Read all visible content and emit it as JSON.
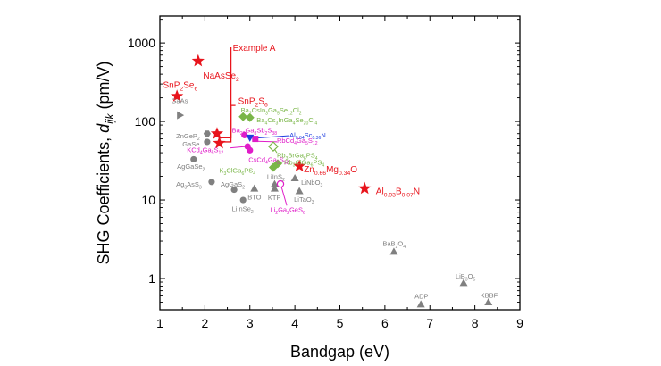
{
  "chart_data": {
    "type": "scatter",
    "xlabel": "Bandgap (eV)",
    "ylabel_main": "SHG Coefficients, ",
    "ylabel_var": "d",
    "ylabel_sub": "ijk",
    "ylabel_unit": " (pm/V)",
    "x_scale": "linear",
    "y_scale": "log",
    "xlim": [
      1,
      9
    ],
    "ylim": [
      0.4,
      2200
    ],
    "x_ticks": [
      "1",
      "2",
      "3",
      "4",
      "5",
      "6",
      "7",
      "8",
      "9"
    ],
    "y_ticks": [
      {
        "value": 1,
        "label": "1"
      },
      {
        "value": 10,
        "label": "10"
      },
      {
        "value": 100,
        "label": "100"
      },
      {
        "value": 1000,
        "label": "1000"
      }
    ],
    "grid": false,
    "colors": {
      "red": "#e8141c",
      "gray": "#808080",
      "green": "#7ab648",
      "magenta": "#e01cc8",
      "blue": "#1f3ee0"
    },
    "points": [
      {
        "x": 1.85,
        "y": 590,
        "marker": "star",
        "color": "red",
        "parts": [
          {
            "t": "NaAsSe"
          },
          {
            "t": "2",
            "sub": true
          }
        ],
        "lx": 1.96,
        "ly": 380
      },
      {
        "x": 1.38,
        "y": 210,
        "marker": "star",
        "color": "red",
        "parts": [
          {
            "t": "SnP"
          },
          {
            "t": "2",
            "sub": true
          },
          {
            "t": "Se"
          },
          {
            "t": "6",
            "sub": true
          }
        ],
        "lx": 1.07,
        "ly": 290
      },
      {
        "x": 2.27,
        "y": 70,
        "marker": "star",
        "color": "red",
        "parts": [],
        "lx": 0,
        "ly": 0
      },
      {
        "x": 2.32,
        "y": 53,
        "marker": "star",
        "color": "red",
        "parts": [],
        "lx": 0,
        "ly": 0
      },
      {
        "x": 4.1,
        "y": 27,
        "marker": "star",
        "color": "red",
        "parts": [
          {
            "t": "Zn"
          },
          {
            "t": "0.66",
            "sub": true
          },
          {
            "t": "Mg"
          },
          {
            "t": "0.34",
            "sub": true
          },
          {
            "t": "O"
          }
        ],
        "lx": 4.2,
        "ly": 24.5
      },
      {
        "x": 5.55,
        "y": 14,
        "marker": "star",
        "color": "red",
        "parts": [
          {
            "t": "Al"
          },
          {
            "t": "0.93",
            "sub": true
          },
          {
            "t": "B"
          },
          {
            "t": "0.07",
            "sub": true
          },
          {
            "t": "N"
          }
        ],
        "lx": 5.8,
        "ly": 12.8
      },
      {
        "x": 1.45,
        "y": 120,
        "marker": "triangle-right",
        "color": "gray",
        "parts": [
          {
            "t": "GaAs"
          }
        ],
        "lx": 1.25,
        "ly": 185
      },
      {
        "x": 2.05,
        "y": 70,
        "marker": "hexagon",
        "color": "gray",
        "parts": [
          {
            "t": "ZnGeP"
          },
          {
            "t": "2",
            "sub": true
          }
        ],
        "lx": 1.36,
        "ly": 66
      },
      {
        "x": 2.05,
        "y": 55,
        "marker": "circle",
        "color": "gray",
        "parts": [
          {
            "t": "GaSe"
          }
        ],
        "lx": 1.5,
        "ly": 52
      },
      {
        "x": 1.75,
        "y": 33,
        "marker": "circle",
        "color": "gray",
        "parts": [
          {
            "t": "AgGaSe"
          },
          {
            "t": "2",
            "sub": true
          }
        ],
        "lx": 1.38,
        "ly": 27
      },
      {
        "x": 2.15,
        "y": 17,
        "marker": "circle",
        "color": "gray",
        "parts": [
          {
            "t": "Ag"
          },
          {
            "t": "3",
            "sub": true
          },
          {
            "t": "AsS"
          },
          {
            "t": "3",
            "sub": true
          }
        ],
        "lx": 1.36,
        "ly": 16
      },
      {
        "x": 2.65,
        "y": 13.5,
        "marker": "circle",
        "color": "gray",
        "parts": [
          {
            "t": "AgGaS"
          },
          {
            "t": "2",
            "sub": true
          }
        ],
        "lx": 2.35,
        "ly": 16
      },
      {
        "x": 2.85,
        "y": 10,
        "marker": "circle",
        "color": "gray",
        "parts": [
          {
            "t": "LiInSe"
          },
          {
            "t": "2",
            "sub": true
          }
        ],
        "lx": 2.6,
        "ly": 7.8
      },
      {
        "x": 3.1,
        "y": 14,
        "marker": "triangle",
        "color": "gray",
        "parts": [
          {
            "t": "BTO"
          }
        ],
        "lx": 2.95,
        "ly": 11
      },
      {
        "x": 3.55,
        "y": 14,
        "marker": "triangle",
        "color": "gray",
        "parts": [
          {
            "t": "KTP"
          }
        ],
        "lx": 3.4,
        "ly": 10.8
      },
      {
        "x": 3.55,
        "y": 16,
        "marker": "triangle",
        "color": "gray",
        "parts": [
          {
            "t": "LiInS"
          },
          {
            "t": "2",
            "sub": true
          }
        ],
        "lx": 3.38,
        "ly": 20
      },
      {
        "x": 4.0,
        "y": 19,
        "marker": "triangle",
        "color": "gray",
        "parts": [
          {
            "t": "LiNbO"
          },
          {
            "t": "3",
            "sub": true
          }
        ],
        "lx": 4.14,
        "ly": 17
      },
      {
        "x": 4.1,
        "y": 13,
        "marker": "triangle",
        "color": "gray",
        "parts": [
          {
            "t": "LiTaO"
          },
          {
            "t": "3",
            "sub": true
          }
        ],
        "lx": 3.98,
        "ly": 10.3
      },
      {
        "x": 6.2,
        "y": 2.2,
        "marker": "triangle",
        "color": "gray",
        "parts": [
          {
            "t": "BaB"
          },
          {
            "t": "2",
            "sub": true
          },
          {
            "t": "O"
          },
          {
            "t": "4",
            "sub": true
          }
        ],
        "lx": 5.95,
        "ly": 2.8
      },
      {
        "x": 6.8,
        "y": 0.47,
        "marker": "triangle",
        "color": "gray",
        "parts": [
          {
            "t": "ADP"
          }
        ],
        "lx": 6.66,
        "ly": 0.6
      },
      {
        "x": 7.75,
        "y": 0.88,
        "marker": "triangle",
        "color": "gray",
        "parts": [
          {
            "t": "LiB"
          },
          {
            "t": "3",
            "sub": true
          },
          {
            "t": "O"
          },
          {
            "t": "5",
            "sub": true
          }
        ],
        "lx": 7.57,
        "ly": 1.08
      },
      {
        "x": 8.3,
        "y": 0.5,
        "marker": "triangle",
        "color": "gray",
        "parts": [
          {
            "t": "KBBF"
          }
        ],
        "lx": 8.12,
        "ly": 0.62
      },
      {
        "x": 2.85,
        "y": 115,
        "marker": "diamond",
        "color": "green",
        "parts": [
          {
            "t": "Ba"
          },
          {
            "t": "2",
            "sub": true
          },
          {
            "t": "CsIn"
          },
          {
            "t": "3",
            "sub": true
          },
          {
            "t": "Ga"
          },
          {
            "t": "5",
            "sub": true
          },
          {
            "t": "Se"
          },
          {
            "t": "12",
            "sub": true
          },
          {
            "t": "Cl"
          },
          {
            "t": "2",
            "sub": true
          }
        ],
        "lx": 2.8,
        "ly": 140
      },
      {
        "x": 3.0,
        "y": 112,
        "marker": "diamond",
        "color": "green",
        "parts": [
          {
            "t": "Ba"
          },
          {
            "t": "4",
            "sub": true
          },
          {
            "t": "Cs"
          },
          {
            "t": "3",
            "sub": true
          },
          {
            "t": "InGa"
          },
          {
            "t": "4",
            "sub": true
          },
          {
            "t": "Se"
          },
          {
            "t": "20",
            "sub": true
          },
          {
            "t": "Cl"
          },
          {
            "t": "4",
            "sub": true
          }
        ],
        "lx": 3.15,
        "ly": 105
      },
      {
        "x": 3.52,
        "y": 48,
        "marker": "diamond-open",
        "color": "green",
        "parts": [
          {
            "t": "Rb"
          },
          {
            "t": "3",
            "sub": true
          },
          {
            "t": "BrGa"
          },
          {
            "t": "6",
            "sub": true
          },
          {
            "t": "PS"
          },
          {
            "t": "4",
            "sub": true
          }
        ],
        "lx": 3.6,
        "ly": 37.5
      },
      {
        "x": 3.62,
        "y": 29,
        "marker": "diamond",
        "color": "green",
        "parts": [
          {
            "t": "Rb"
          },
          {
            "t": "3",
            "sub": true
          },
          {
            "t": "ClGa"
          },
          {
            "t": "6",
            "sub": true
          },
          {
            "t": "PS"
          },
          {
            "t": "4",
            "sub": true
          }
        ],
        "lx": 3.76,
        "ly": 30.5
      },
      {
        "x": 3.52,
        "y": 26,
        "marker": "diamond",
        "color": "green",
        "parts": [
          {
            "t": "K"
          },
          {
            "t": "3",
            "sub": true
          },
          {
            "t": "ClGa"
          },
          {
            "t": "6",
            "sub": true
          },
          {
            "t": "PS"
          },
          {
            "t": "4",
            "sub": true
          }
        ],
        "lx": 2.32,
        "ly": 24
      },
      {
        "x": 2.88,
        "y": 67,
        "marker": "circle",
        "color": "magenta",
        "parts": [
          {
            "t": "Ba"
          },
          {
            "t": "23",
            "sub": true
          },
          {
            "t": "Ga"
          },
          {
            "t": "8",
            "sub": true
          },
          {
            "t": "Sb"
          },
          {
            "t": "2",
            "sub": true
          },
          {
            "t": "S"
          },
          {
            "t": "38",
            "sub": true
          }
        ],
        "lx": 2.6,
        "ly": 78
      },
      {
        "x": 2.95,
        "y": 48,
        "marker": "circle",
        "color": "magenta",
        "parts": [
          {
            "t": "KCd"
          },
          {
            "t": "4",
            "sub": true
          },
          {
            "t": "Ga"
          },
          {
            "t": "5",
            "sub": true
          },
          {
            "t": "S"
          },
          {
            "t": "12",
            "sub": true
          }
        ],
        "lx": 1.6,
        "ly": 44
      },
      {
        "x": 3.0,
        "y": 43,
        "marker": "circle",
        "color": "magenta",
        "parts": [
          {
            "t": "CsCd"
          },
          {
            "t": "4",
            "sub": true
          },
          {
            "t": "Ga"
          },
          {
            "t": "5",
            "sub": true
          },
          {
            "t": "S"
          },
          {
            "t": "12",
            "sub": true
          }
        ],
        "lx": 2.97,
        "ly": 33
      },
      {
        "x": 3.68,
        "y": 16,
        "marker": "circle-open",
        "color": "magenta",
        "parts": [
          {
            "t": "Li"
          },
          {
            "t": "2",
            "sub": true
          },
          {
            "t": "Ga"
          },
          {
            "t": "2",
            "sub": true
          },
          {
            "t": "GeS"
          },
          {
            "t": "6",
            "sub": true
          }
        ],
        "lx": 3.45,
        "ly": 7.6
      },
      {
        "x": 3.12,
        "y": 60,
        "marker": "square",
        "color": "magenta",
        "parts": [
          {
            "t": "RbCd"
          },
          {
            "t": "4",
            "sub": true
          },
          {
            "t": "Ga"
          },
          {
            "t": "5",
            "sub": true
          },
          {
            "t": "S"
          },
          {
            "t": "12",
            "sub": true
          }
        ],
        "lx": 3.6,
        "ly": 58
      },
      {
        "x": 3.0,
        "y": 62,
        "marker": "triangle-down",
        "color": "blue",
        "parts": [
          {
            "t": "Al"
          },
          {
            "t": "0.64",
            "sub": true
          },
          {
            "t": "Sc"
          },
          {
            "t": "0.36",
            "sub": true
          },
          {
            "t": "N"
          }
        ],
        "lx": 3.88,
        "ly": 68
      }
    ],
    "annotations": [
      {
        "color": "red",
        "parts": [
          {
            "t": "Example A"
          }
        ],
        "lx": 2.58,
        "ly": 880,
        "path": [
          [
            2.3,
            62
          ],
          [
            2.58,
            62
          ],
          [
            2.58,
            880
          ]
        ]
      },
      {
        "color": "red",
        "parts": [
          {
            "t": "SnP"
          },
          {
            "t": "2",
            "sub": true
          },
          {
            "t": "S"
          },
          {
            "t": "6",
            "sub": true
          }
        ],
        "lx": 2.7,
        "ly": 186,
        "path": [
          [
            2.35,
            55
          ],
          [
            2.58,
            55
          ],
          [
            2.58,
            160
          ],
          [
            2.68,
            160
          ]
        ]
      }
    ],
    "leader_lines": [
      {
        "color": "blue",
        "from": [
          3.88,
          66
        ],
        "to": [
          3.05,
          61
        ]
      },
      {
        "color": "magenta",
        "from": [
          3.6,
          55
        ],
        "to": [
          3.15,
          56
        ]
      },
      {
        "color": "magenta",
        "from": [
          2.55,
          46
        ],
        "to": [
          2.9,
          48
        ]
      },
      {
        "color": "green",
        "from": [
          3.6,
          40
        ],
        "to": [
          3.53,
          46
        ]
      },
      {
        "color": "green",
        "from": [
          3.76,
          31
        ],
        "to": [
          3.66,
          29
        ]
      },
      {
        "color": "magenta",
        "from": [
          3.82,
          8.5
        ],
        "to": [
          3.69,
          15.5
        ]
      }
    ]
  }
}
